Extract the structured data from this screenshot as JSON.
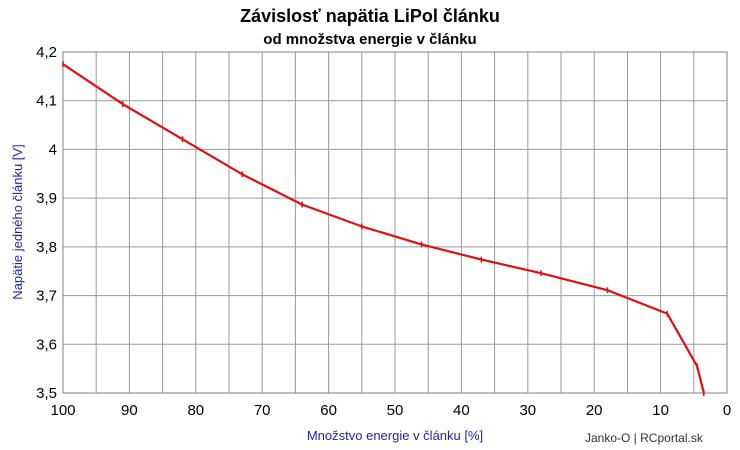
{
  "colors": {
    "series": "#e01010",
    "grid": "#9a9a9a",
    "axis_label": "#1f1fb4",
    "background": "#ffffff"
  },
  "credit": "Janko-O | RCportal.sk",
  "chart_data": {
    "type": "line",
    "title": "Závislosť napätia LiPol článku",
    "subtitle": "od množstva energie v článku",
    "xlabel": "Množstvo energie v článku [%]",
    "ylabel": "Napätie jedného článku [V]",
    "xlim": [
      100,
      0
    ],
    "ylim": [
      3.5,
      4.2
    ],
    "x_ticks": [
      "100",
      "90",
      "80",
      "70",
      "60",
      "50",
      "40",
      "30",
      "20",
      "10",
      "0"
    ],
    "y_ticks": [
      "3,5",
      "3,6",
      "3,7",
      "3,8",
      "3,9",
      "4",
      "4,1",
      "4,2"
    ],
    "grid": true,
    "legend": "none",
    "series": [
      {
        "x": [
          100,
          91,
          82,
          73,
          64,
          55,
          46,
          37,
          28,
          18,
          9,
          4.5,
          3.5
        ],
        "y": [
          4.175,
          4.093,
          4.021,
          3.949,
          3.887,
          3.842,
          3.805,
          3.774,
          3.746,
          3.711,
          3.663,
          3.555,
          3.5
        ]
      }
    ]
  }
}
